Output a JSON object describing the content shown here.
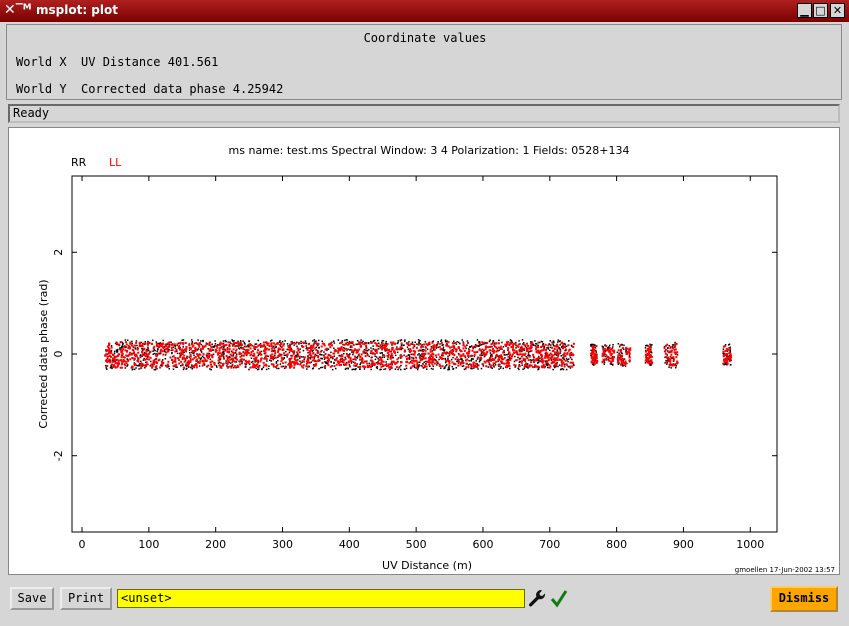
{
  "window": {
    "title": "msplot: plot"
  },
  "coord": {
    "title": "Coordinate values",
    "x_label": "World X",
    "x_value": "UV Distance 401.561",
    "y_label": "World Y",
    "y_value": "Corrected data phase 4.25942"
  },
  "status": "Ready",
  "chart_data": {
    "type": "scatter",
    "title": "ms name: test.ms Spectral Window: 3 4 Polarization: 1 Fields: 0528+134",
    "xlabel": "UV Distance (m)",
    "ylabel": "Corrected data phase (rad)",
    "xlim": [
      -15,
      1040
    ],
    "ylim": [
      -3.5,
      3.5
    ],
    "x_ticks": [
      0,
      100,
      200,
      300,
      400,
      500,
      600,
      700,
      800,
      900,
      1000
    ],
    "y_ticks": [
      -2,
      0,
      2
    ],
    "legend": [
      {
        "name": "RR",
        "color": "#000000"
      },
      {
        "name": "LL",
        "color": "#ff0000"
      }
    ],
    "clusters": [
      {
        "x_from": 33,
        "x_to": 735,
        "y_center": 0.0,
        "y_spread": 0.28
      },
      {
        "x_from": 760,
        "x_to": 770,
        "y_center": 0.0,
        "y_spread": 0.2
      },
      {
        "x_from": 777,
        "x_to": 795,
        "y_center": 0.0,
        "y_spread": 0.2
      },
      {
        "x_from": 800,
        "x_to": 820,
        "y_center": 0.0,
        "y_spread": 0.22
      },
      {
        "x_from": 842,
        "x_to": 852,
        "y_center": 0.0,
        "y_spread": 0.2
      },
      {
        "x_from": 870,
        "x_to": 890,
        "y_center": 0.0,
        "y_spread": 0.25
      },
      {
        "x_from": 958,
        "x_to": 970,
        "y_center": 0.0,
        "y_spread": 0.2
      }
    ],
    "footer": "gmoellen 17-Jun-2002 13:57"
  },
  "buttons": {
    "save": "Save",
    "print": "Print",
    "dismiss": "Dismiss"
  },
  "entry": {
    "value": "<unset>"
  },
  "icons": {
    "wrench": "wrench-icon",
    "check": "checkmark-icon"
  }
}
